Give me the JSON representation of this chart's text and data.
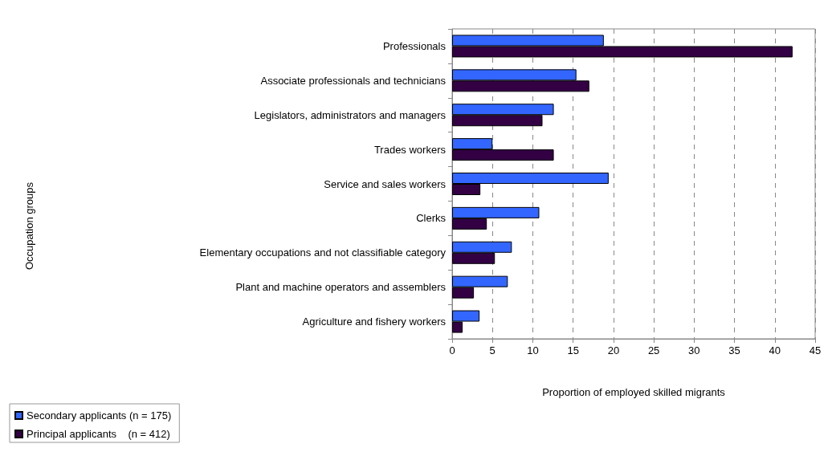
{
  "chart_data": {
    "type": "bar",
    "orientation": "horizontal",
    "xlabel": "Proportion of employed skilled migrants",
    "annotations": [
      "Occupation groups"
    ],
    "categories": [
      "Professionals",
      "Associate professionals and technicians",
      "Legislators, administrators and managers",
      "Trades workers",
      "Service and sales workers",
      "Clerks",
      "Elementary occupations and not classifiable category",
      "Plant and machine operators and assemblers",
      "Agriculture and fishery workers"
    ],
    "series": [
      {
        "name": "Secondary applicants (n = 175)",
        "color": "#3366ff",
        "values": [
          18.8,
          15.4,
          12.6,
          5.0,
          19.4,
          10.8,
          7.4,
          6.9,
          3.4
        ]
      },
      {
        "name": "Principal applicants    (n = 412)",
        "color": "#330044",
        "values": [
          42.2,
          17.0,
          11.2,
          12.6,
          3.5,
          4.3,
          5.3,
          2.7,
          1.3
        ]
      }
    ],
    "xlim": [
      0,
      45
    ],
    "xticks": [
      0,
      5,
      10,
      15,
      20,
      25,
      30,
      35,
      40,
      45
    ],
    "grid": "x",
    "legend": "bottom left"
  }
}
